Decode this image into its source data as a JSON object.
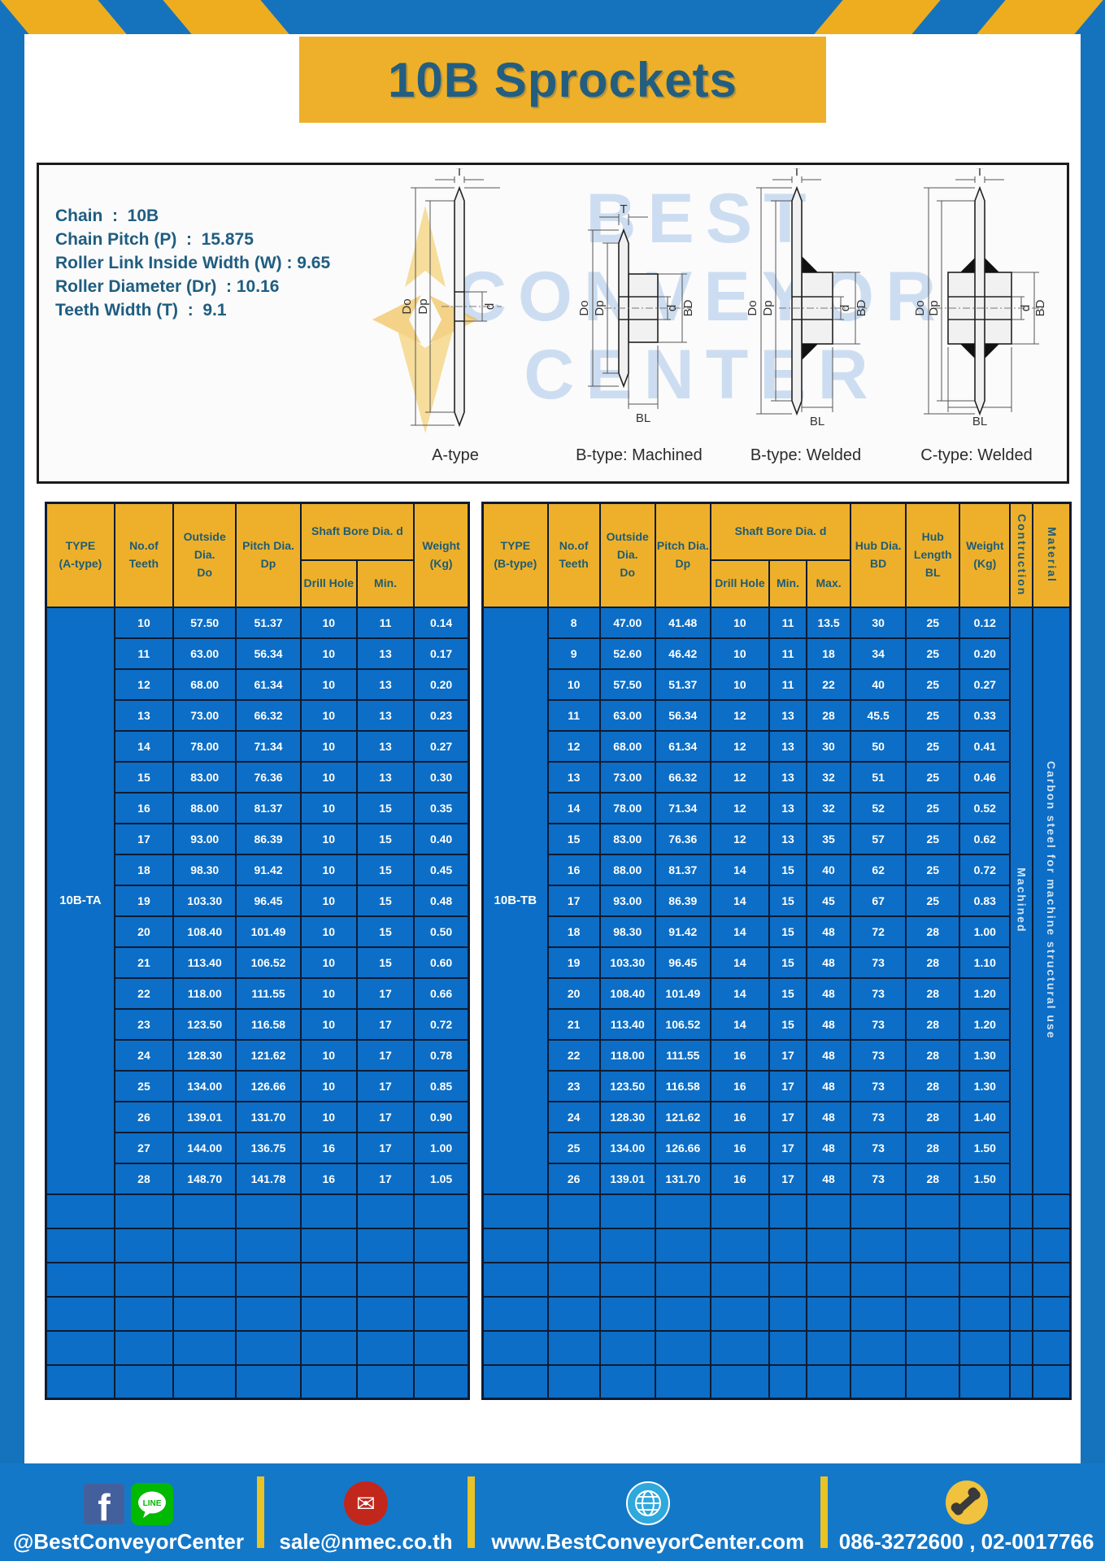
{
  "page": {
    "title": "10B Sprockets"
  },
  "colors": {
    "frame_blue": "#1573bd",
    "table_blue": "#0c6ec6",
    "header_yellow": "#eeb02a",
    "stripe_yellow": "#eead1e",
    "dark_blue_text": "#235e80",
    "border_navy": "#0d1b33",
    "footer_blue": "#1478c9"
  },
  "specs": {
    "lines": [
      "Chain  :  10B",
      "Chain Pitch (P)  :  15.875",
      "Roller Link Inside Width (W) : 9.65",
      "Roller Diameter (Dr)  : 10.16",
      "Teeth Width (T)  :  9.1"
    ]
  },
  "diagram": {
    "watermark_lines": [
      "BEST",
      "CONVEYOR",
      "CENTER"
    ],
    "labels": [
      "A-type",
      "B-type: Machined",
      "B-type: Welded",
      "C-type: Welded"
    ],
    "dims": {
      "T": "T",
      "Do": "Do",
      "Dp": "Dp",
      "d": "d",
      "BD": "BD",
      "BL": "BL"
    }
  },
  "tables": {
    "a": {
      "headers": {
        "type": "TYPE\n(A-type)",
        "teeth": "No.of\nTeeth",
        "outside": "Outside\nDia.\nDo",
        "pitch": "Pitch Dia.\nDp",
        "shaft": "Shaft Bore Dia. d",
        "drill": "Drill Hole",
        "min": "Min.",
        "weight": "Weight\n(Kg)"
      },
      "type_value": "10B-TA",
      "empty_rows": 6,
      "rows": [
        [
          "10",
          "57.50",
          "51.37",
          "10",
          "11",
          "0.14"
        ],
        [
          "11",
          "63.00",
          "56.34",
          "10",
          "13",
          "0.17"
        ],
        [
          "12",
          "68.00",
          "61.34",
          "10",
          "13",
          "0.20"
        ],
        [
          "13",
          "73.00",
          "66.32",
          "10",
          "13",
          "0.23"
        ],
        [
          "14",
          "78.00",
          "71.34",
          "10",
          "13",
          "0.27"
        ],
        [
          "15",
          "83.00",
          "76.36",
          "10",
          "13",
          "0.30"
        ],
        [
          "16",
          "88.00",
          "81.37",
          "10",
          "15",
          "0.35"
        ],
        [
          "17",
          "93.00",
          "86.39",
          "10",
          "15",
          "0.40"
        ],
        [
          "18",
          "98.30",
          "91.42",
          "10",
          "15",
          "0.45"
        ],
        [
          "19",
          "103.30",
          "96.45",
          "10",
          "15",
          "0.48"
        ],
        [
          "20",
          "108.40",
          "101.49",
          "10",
          "15",
          "0.50"
        ],
        [
          "21",
          "113.40",
          "106.52",
          "10",
          "15",
          "0.60"
        ],
        [
          "22",
          "118.00",
          "111.55",
          "10",
          "17",
          "0.66"
        ],
        [
          "23",
          "123.50",
          "116.58",
          "10",
          "17",
          "0.72"
        ],
        [
          "24",
          "128.30",
          "121.62",
          "10",
          "17",
          "0.78"
        ],
        [
          "25",
          "134.00",
          "126.66",
          "10",
          "17",
          "0.85"
        ],
        [
          "26",
          "139.01",
          "131.70",
          "10",
          "17",
          "0.90"
        ],
        [
          "27",
          "144.00",
          "136.75",
          "16",
          "17",
          "1.00"
        ],
        [
          "28",
          "148.70",
          "141.78",
          "16",
          "17",
          "1.05"
        ]
      ]
    },
    "b": {
      "headers": {
        "type": "TYPE\n(B-type)",
        "teeth": "No.of\nTeeth",
        "outside": "Outside\nDia.\nDo",
        "pitch": "Pitch Dia.\nDp",
        "shaft": "Shaft Bore Dia. d",
        "drill": "Drill Hole",
        "min": "Min.",
        "max": "Max.",
        "hub_dia": "Hub Dia.\nBD",
        "hub_len": "Hub\nLength\nBL",
        "weight": "Weight\n(Kg)",
        "construction": "Contruction",
        "material": "Material"
      },
      "type_value": "10B-TB",
      "trailing": [
        "Machined",
        "Carbon steel  for machine structural use"
      ],
      "empty_rows": 6,
      "rows": [
        [
          "8",
          "47.00",
          "41.48",
          "10",
          "11",
          "13.5",
          "30",
          "25",
          "0.12"
        ],
        [
          "9",
          "52.60",
          "46.42",
          "10",
          "11",
          "18",
          "34",
          "25",
          "0.20"
        ],
        [
          "10",
          "57.50",
          "51.37",
          "10",
          "11",
          "22",
          "40",
          "25",
          "0.27"
        ],
        [
          "11",
          "63.00",
          "56.34",
          "12",
          "13",
          "28",
          "45.5",
          "25",
          "0.33"
        ],
        [
          "12",
          "68.00",
          "61.34",
          "12",
          "13",
          "30",
          "50",
          "25",
          "0.41"
        ],
        [
          "13",
          "73.00",
          "66.32",
          "12",
          "13",
          "32",
          "51",
          "25",
          "0.46"
        ],
        [
          "14",
          "78.00",
          "71.34",
          "12",
          "13",
          "32",
          "52",
          "25",
          "0.52"
        ],
        [
          "15",
          "83.00",
          "76.36",
          "12",
          "13",
          "35",
          "57",
          "25",
          "0.62"
        ],
        [
          "16",
          "88.00",
          "81.37",
          "14",
          "15",
          "40",
          "62",
          "25",
          "0.72"
        ],
        [
          "17",
          "93.00",
          "86.39",
          "14",
          "15",
          "45",
          "67",
          "25",
          "0.83"
        ],
        [
          "18",
          "98.30",
          "91.42",
          "14",
          "15",
          "48",
          "72",
          "28",
          "1.00"
        ],
        [
          "19",
          "103.30",
          "96.45",
          "14",
          "15",
          "48",
          "73",
          "28",
          "1.10"
        ],
        [
          "20",
          "108.40",
          "101.49",
          "14",
          "15",
          "48",
          "73",
          "28",
          "1.20"
        ],
        [
          "21",
          "113.40",
          "106.52",
          "14",
          "15",
          "48",
          "73",
          "28",
          "1.20"
        ],
        [
          "22",
          "118.00",
          "111.55",
          "16",
          "17",
          "48",
          "73",
          "28",
          "1.30"
        ],
        [
          "23",
          "123.50",
          "116.58",
          "16",
          "17",
          "48",
          "73",
          "28",
          "1.30"
        ],
        [
          "24",
          "128.30",
          "121.62",
          "16",
          "17",
          "48",
          "73",
          "28",
          "1.40"
        ],
        [
          "25",
          "134.00",
          "126.66",
          "16",
          "17",
          "48",
          "73",
          "28",
          "1.50"
        ],
        [
          "26",
          "139.01",
          "131.70",
          "16",
          "17",
          "48",
          "73",
          "28",
          "1.50"
        ]
      ]
    }
  },
  "footer": {
    "facebook_glyph": "f",
    "line_label": "LINE",
    "mail_glyph": "✉",
    "social_text": "@BestConveyorCenter",
    "email_text": "sale@nmec.co.th",
    "web_text": "www.BestConveyorCenter.com",
    "phone_text": "086-3272600 , 02-0017766"
  }
}
